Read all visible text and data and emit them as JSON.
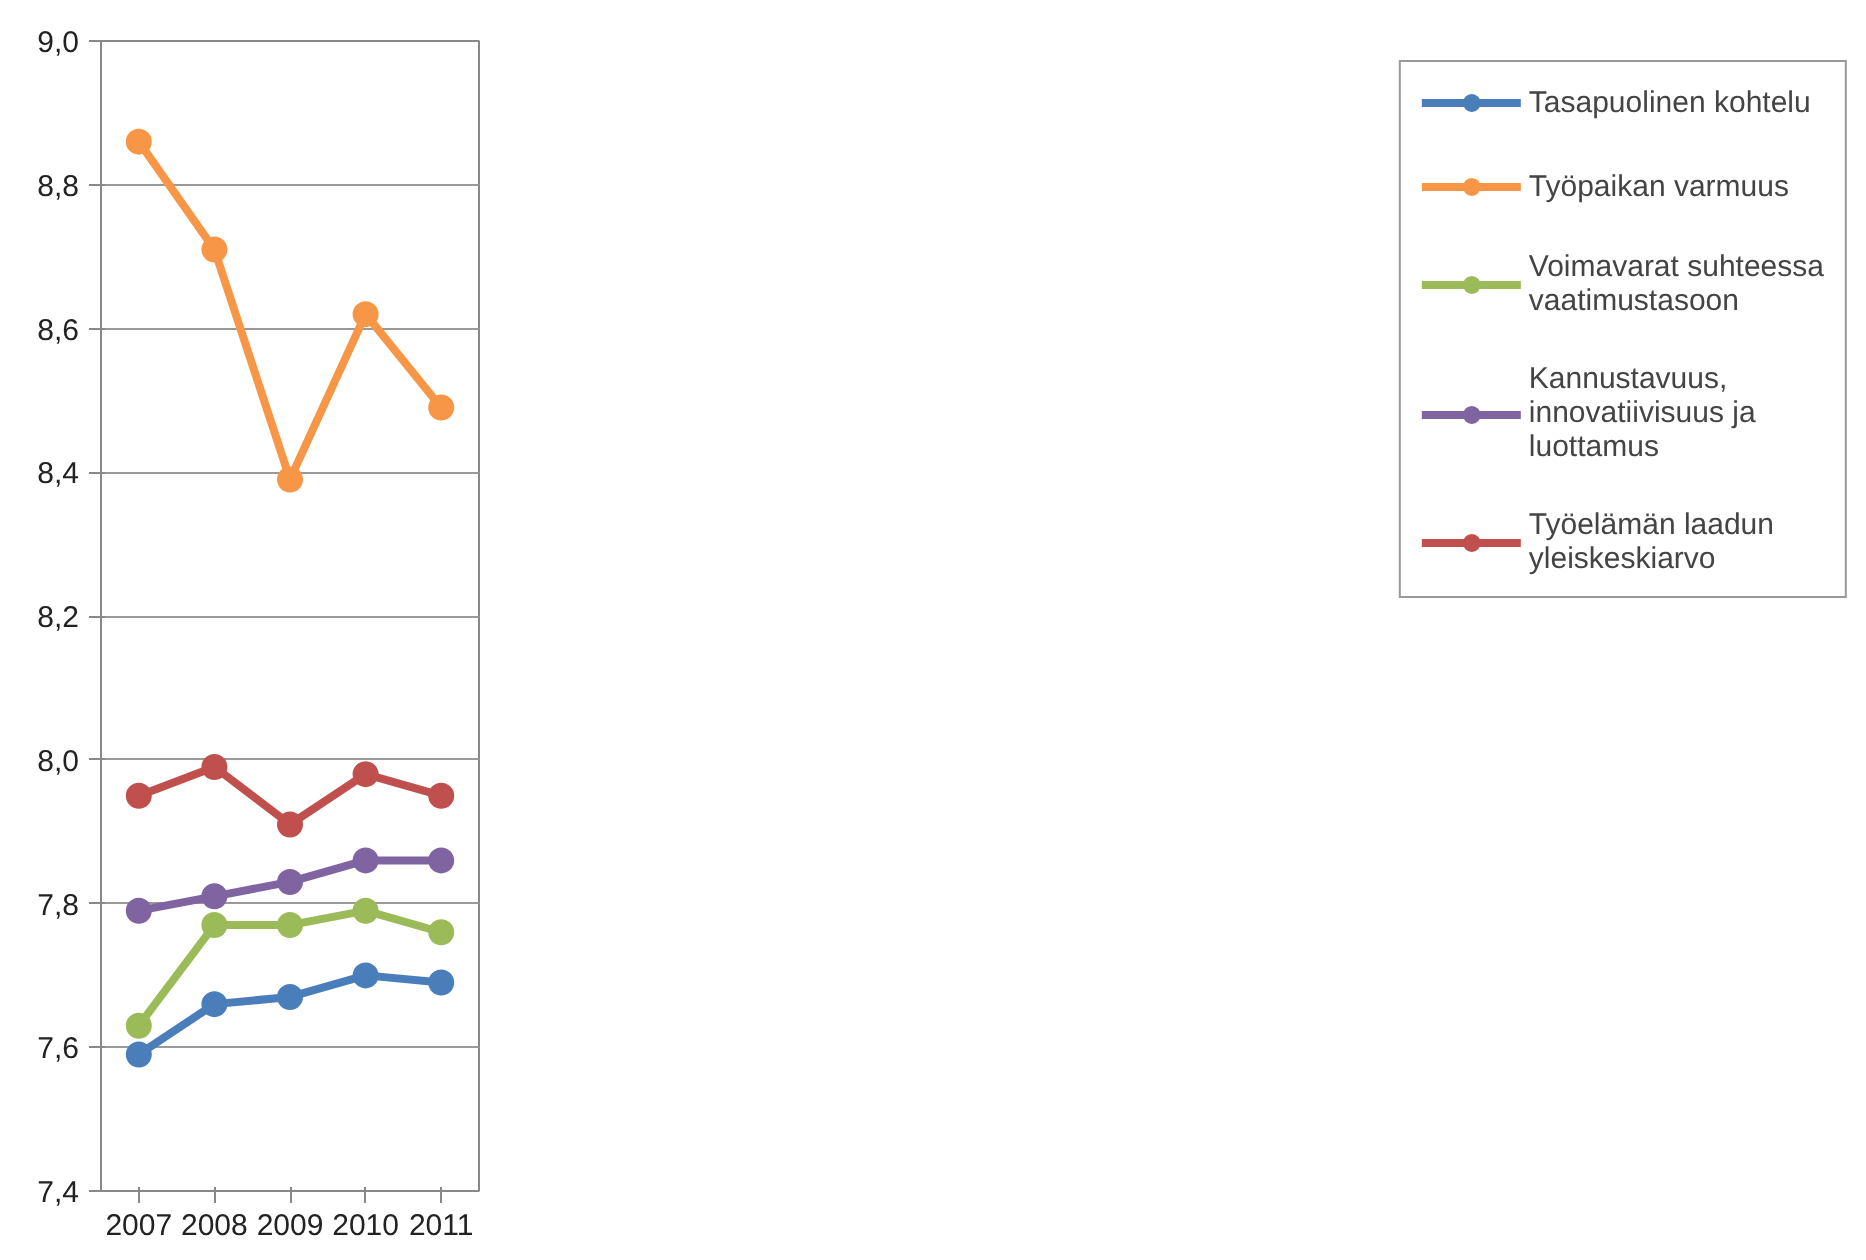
{
  "chart_data": {
    "type": "line",
    "categories": [
      "2007",
      "2008",
      "2009",
      "2010",
      "2011"
    ],
    "series": [
      {
        "name": "Tasapuolinen kohtelu",
        "color": "#4a7ebb",
        "values": [
          7.59,
          7.66,
          7.67,
          7.7,
          7.69
        ]
      },
      {
        "name": "Työpaikan varmuus",
        "color": "#f79646",
        "values": [
          8.86,
          8.71,
          8.39,
          8.62,
          8.49
        ]
      },
      {
        "name": "Voimavarat suhteessa vaatimustasoon",
        "color": "#9bbb59",
        "values": [
          7.63,
          7.77,
          7.77,
          7.79,
          7.76
        ]
      },
      {
        "name": "Kannustavuus, innovatiivisuus ja luottamus",
        "color": "#8064a2",
        "values": [
          7.79,
          7.81,
          7.83,
          7.86,
          7.86
        ]
      },
      {
        "name": "Työelämän laadun yleiskeskiarvo",
        "color": "#c0504d",
        "values": [
          7.95,
          7.99,
          7.91,
          7.98,
          7.95
        ]
      }
    ],
    "ylim": [
      7.4,
      9.0
    ],
    "yticks": [
      {
        "value": 7.4,
        "label": "7,4"
      },
      {
        "value": 7.6,
        "label": "7,6"
      },
      {
        "value": 7.8,
        "label": "7,8"
      },
      {
        "value": 8.0,
        "label": "8,0"
      },
      {
        "value": 8.2,
        "label": "8,2"
      },
      {
        "value": 8.4,
        "label": "8,4"
      },
      {
        "value": 8.6,
        "label": "8,6"
      },
      {
        "value": 8.8,
        "label": "8,8"
      },
      {
        "value": 9.0,
        "label": "9,0"
      }
    ],
    "grid": "y",
    "legend": "right",
    "marker": "circle",
    "line_style": "solid"
  }
}
